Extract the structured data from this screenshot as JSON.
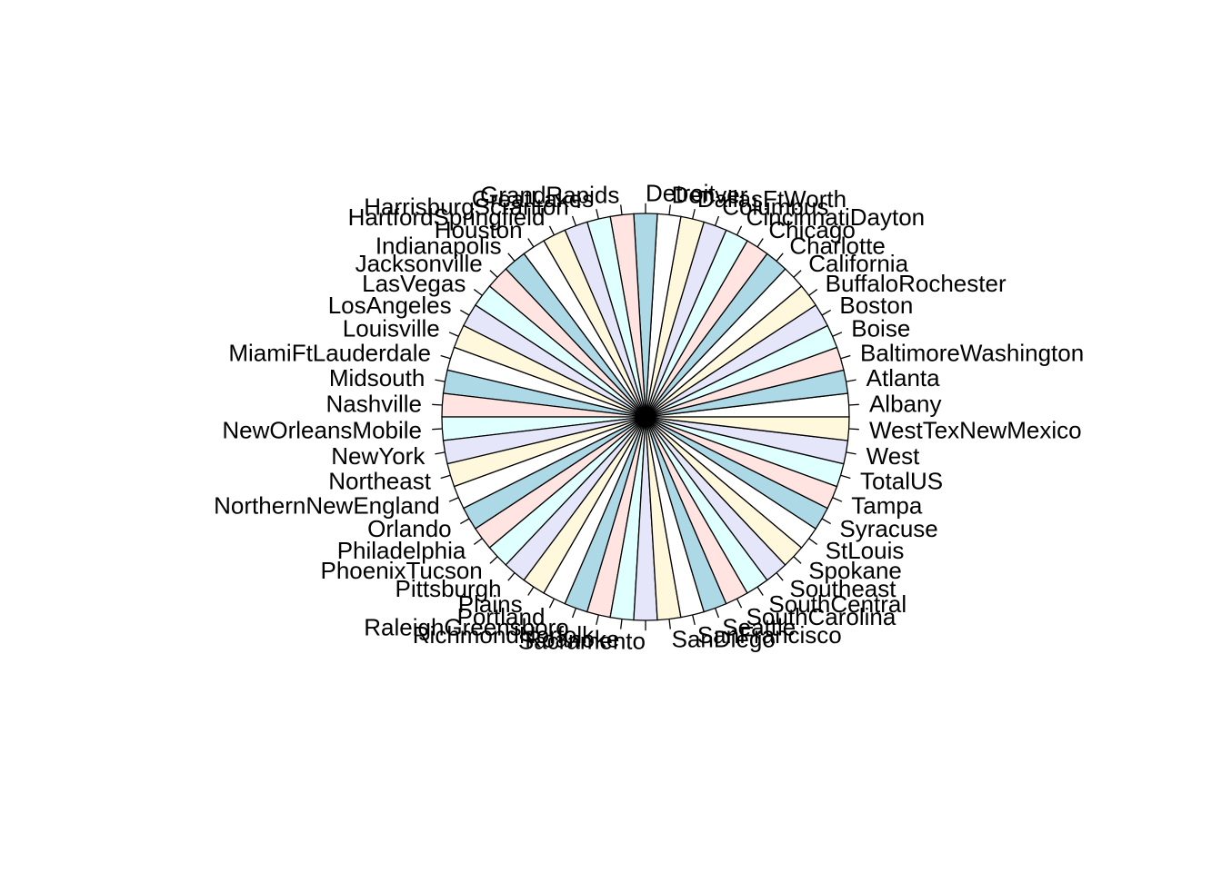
{
  "chart_data": {
    "type": "pie",
    "title": "",
    "start_angle_deg": 0,
    "direction": "counterclockwise",
    "categories": [
      "Albany",
      "Atlanta",
      "BaltimoreWashington",
      "Boise",
      "Boston",
      "BuffaloRochester",
      "California",
      "Charlotte",
      "Chicago",
      "CincinnatiDayton",
      "Columbus",
      "DallasFtWorth",
      "Denver",
      "Detroit",
      "GrandRapids",
      "GreatLakes",
      "HarrisburgScranton",
      "HartfordSpringfield",
      "Houston",
      "Indianapolis",
      "Jacksonville",
      "LasVegas",
      "LosAngeles",
      "Louisville",
      "MiamiFtLauderdale",
      "Midsouth",
      "Nashville",
      "NewOrleansMobile",
      "NewYork",
      "Northeast",
      "NorthernNewEngland",
      "Orlando",
      "Philadelphia",
      "PhoenixTucson",
      "Pittsburgh",
      "Plains",
      "Portland",
      "RaleighGreensboro",
      "RichmondNorfolk",
      "Roanoke",
      "Sacramento",
      "SanDiego",
      "SanFrancisco",
      "Seattle",
      "SouthCarolina",
      "SouthCentral",
      "Southeast",
      "Spokane",
      "StLouis",
      "Syracuse",
      "Tampa",
      "TotalUS",
      "West",
      "WestTexNewMexico"
    ],
    "values": [
      1,
      1,
      1,
      1,
      1,
      1,
      1,
      1,
      1,
      1,
      1,
      1,
      1,
      1,
      1,
      1,
      1,
      1,
      1,
      1,
      1,
      1,
      1,
      1,
      1,
      1,
      1,
      1,
      1,
      1,
      1,
      1,
      1,
      1,
      1,
      1,
      1,
      1,
      1,
      1,
      1,
      1,
      1,
      1,
      1,
      1,
      1,
      1,
      1,
      1,
      1,
      1,
      1,
      1
    ],
    "colors": [
      "#ffffff",
      "#add8e6",
      "#ffe4e1",
      "#e0ffff",
      "#e6e6fa",
      "#fff8dc"
    ]
  }
}
